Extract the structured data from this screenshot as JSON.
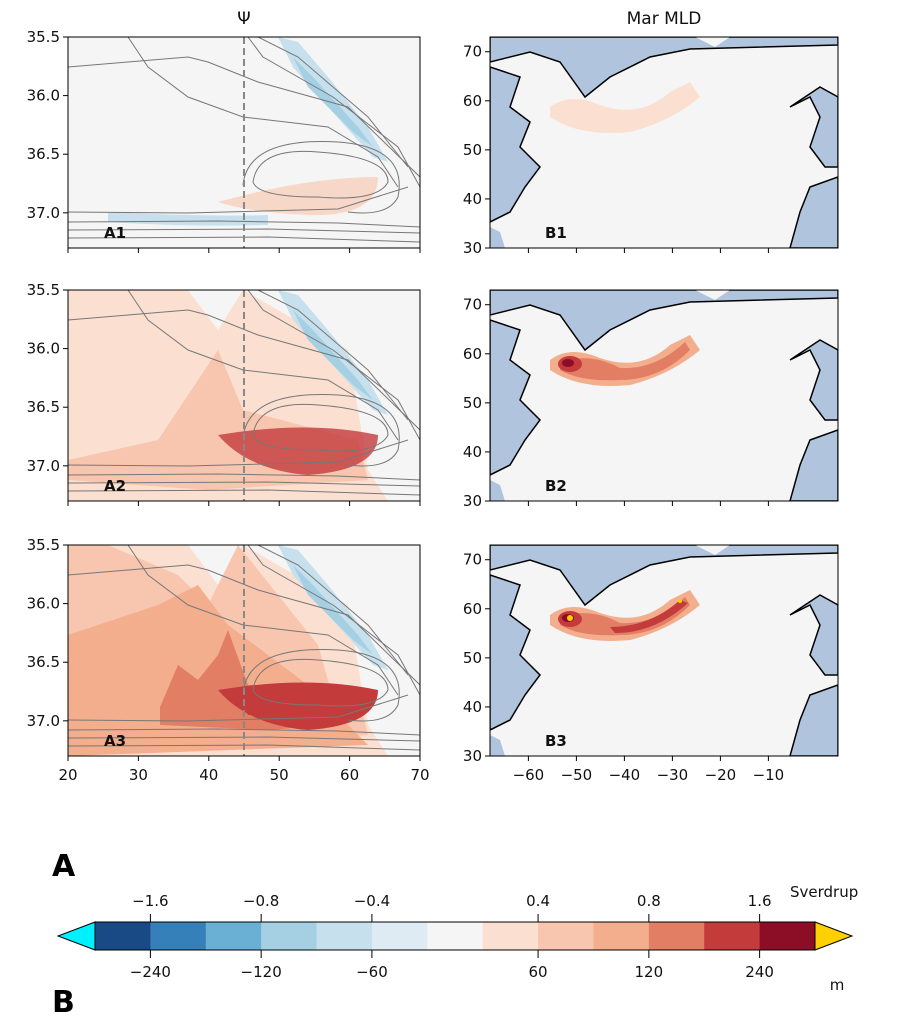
{
  "chart_data": [
    {
      "type": "heatmap",
      "title": "Ψ",
      "panels": [
        "A1",
        "A2",
        "A3"
      ],
      "xlim": [
        20,
        70
      ],
      "ylim": [
        37.3,
        35.5
      ],
      "xticks": [
        "20",
        "30",
        "40",
        "50",
        "60",
        "70"
      ],
      "yticks": [
        "35.5",
        "36.0",
        "36.5",
        "37.0"
      ],
      "reference_line_x": 45,
      "anomaly_intensity": [
        0.25,
        0.6,
        1.0
      ]
    },
    {
      "type": "heatmap",
      "title": "Mar MLD",
      "panels": [
        "B1",
        "B2",
        "B3"
      ],
      "xlim": [
        -68,
        4.5
      ],
      "ylim": [
        30,
        73
      ],
      "xticks": [
        "−60",
        "−50",
        "−40",
        "−30",
        "−20",
        "−10"
      ],
      "yticks": [
        "30",
        "40",
        "50",
        "60",
        "70"
      ],
      "land_color": "#b0c4de",
      "anomaly_intensity": [
        0.25,
        0.6,
        1.0
      ]
    }
  ],
  "colorbar": {
    "label_a": "A",
    "label_b": "B",
    "top_unit": "Sverdrup",
    "bottom_unit": "m",
    "top_ticks": [
      "−1.6",
      "−0.8",
      "−0.4",
      "0.4",
      "0.8",
      "1.6"
    ],
    "bottom_ticks": [
      "−240",
      "−120",
      "−60",
      "60",
      "120",
      "240"
    ],
    "tick_boundaries": [
      1,
      3,
      5,
      8,
      10,
      12
    ],
    "colors": [
      "#1a4a85",
      "#3580b9",
      "#6aafd4",
      "#a5d0e4",
      "#c6e0ed",
      "#deebf3",
      "#f5f5f5",
      "#fbe0d2",
      "#f8c6ae",
      "#f3ae8e",
      "#e17e63",
      "#c43b3c",
      "#8c0d26"
    ],
    "extend_low": "#00f0ff",
    "extend_high": "#ffd000"
  }
}
